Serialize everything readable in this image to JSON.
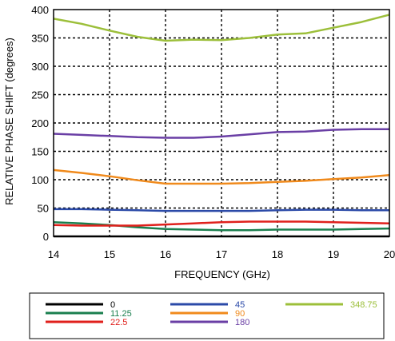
{
  "chart_data": {
    "type": "line",
    "title": "",
    "xlabel": "FREQUENCY (GHz)",
    "ylabel": "RELATIVE PHASE SHIFT  (degrees)",
    "xlim": [
      14,
      20
    ],
    "ylim": [
      0,
      400
    ],
    "xticks": [
      14,
      15,
      16,
      17,
      18,
      19,
      20
    ],
    "yticks": [
      0,
      50,
      100,
      150,
      200,
      250,
      300,
      350,
      400
    ],
    "grid": true,
    "legend_position": "bottom",
    "series": [
      {
        "name": "0",
        "color": "#000000",
        "x": [
          14,
          20
        ],
        "y": [
          0,
          0
        ]
      },
      {
        "name": "11.25",
        "color": "#1a7f4e",
        "x": [
          14,
          14.5,
          15,
          15.5,
          16,
          16.5,
          17,
          17.5,
          18,
          18.5,
          19,
          19.5,
          20
        ],
        "y": [
          25,
          23,
          20,
          16,
          13,
          12,
          11,
          11,
          12,
          12,
          12,
          13,
          14
        ]
      },
      {
        "name": "22.5",
        "color": "#e0201c",
        "x": [
          14,
          14.5,
          15,
          15.5,
          16,
          16.5,
          17,
          17.5,
          18,
          18.5,
          19,
          19.5,
          20
        ],
        "y": [
          20,
          19,
          19,
          19,
          21,
          23,
          25,
          26,
          26,
          26,
          25,
          24,
          23
        ]
      },
      {
        "name": "45",
        "color": "#2b4aa8",
        "x": [
          14,
          14.5,
          15,
          15.5,
          16,
          16.5,
          17,
          17.5,
          18,
          18.5,
          19,
          19.5,
          20
        ],
        "y": [
          48,
          48,
          47,
          46,
          45,
          45,
          45,
          45,
          46,
          47,
          47,
          46,
          46
        ]
      },
      {
        "name": "90",
        "color": "#f08a1c",
        "x": [
          14,
          14.5,
          15,
          15.5,
          16,
          16.5,
          17,
          17.5,
          18,
          18.5,
          19,
          19.5,
          20
        ],
        "y": [
          117,
          112,
          106,
          99,
          93,
          93,
          93,
          94,
          96,
          98,
          101,
          104,
          108
        ]
      },
      {
        "name": "180",
        "color": "#6a3fa5",
        "x": [
          14,
          14.5,
          15,
          15.5,
          16,
          16.5,
          17,
          17.5,
          18,
          18.5,
          19,
          19.5,
          20
        ],
        "y": [
          181,
          179,
          177,
          175,
          174,
          174,
          176,
          180,
          184,
          185,
          188,
          189,
          189
        ]
      },
      {
        "name": "348.75",
        "color": "#9cbf3a",
        "x": [
          14,
          14.5,
          15,
          15.5,
          16,
          16.5,
          17,
          17.5,
          18,
          18.5,
          19,
          19.5,
          20
        ],
        "y": [
          384,
          375,
          363,
          352,
          345,
          347,
          346,
          350,
          356,
          358,
          368,
          378,
          391
        ]
      }
    ]
  }
}
